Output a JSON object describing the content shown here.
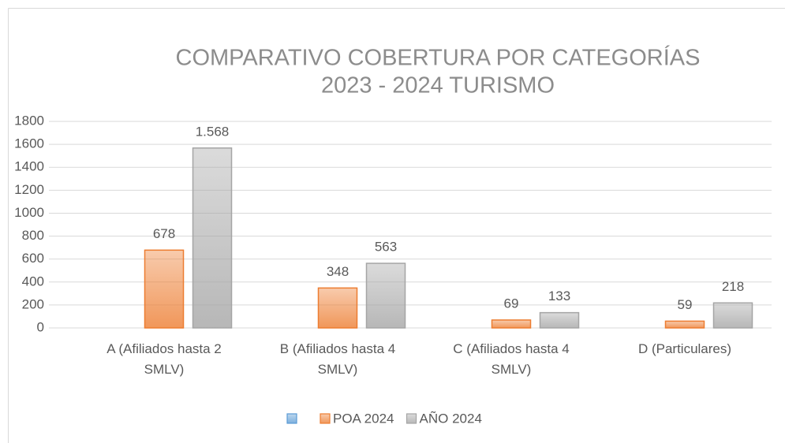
{
  "chart_data": {
    "type": "bar",
    "title": [
      "COMPARATIVO COBERTURA POR CATEGORÍAS",
      "2023 - 2024 TURISMO"
    ],
    "categories": [
      "A (Afiliados hasta 2 SMLV)",
      "B (Afiliados hasta 4 SMLV)",
      "C (Afiliados hasta 4 SMLV)",
      "D (Particulares)"
    ],
    "series": [
      {
        "name": null,
        "color": "#5b9bd5",
        "values": [
          null,
          null,
          null,
          null
        ]
      },
      {
        "name": "POA 2024",
        "color": "#ed7d31",
        "values": [
          678,
          348,
          69,
          59
        ]
      },
      {
        "name": "AÑO 2024",
        "color": "#a5a5a5",
        "values": [
          1568,
          563,
          133,
          218
        ],
        "value_labels": [
          "1.568",
          "563",
          "133",
          "218"
        ]
      }
    ],
    "ylim": [
      0,
      1800
    ],
    "yticks": [
      0,
      200,
      400,
      600,
      800,
      1000,
      1200,
      1400,
      1600,
      1800
    ],
    "grid": true,
    "legend": "bottom"
  }
}
